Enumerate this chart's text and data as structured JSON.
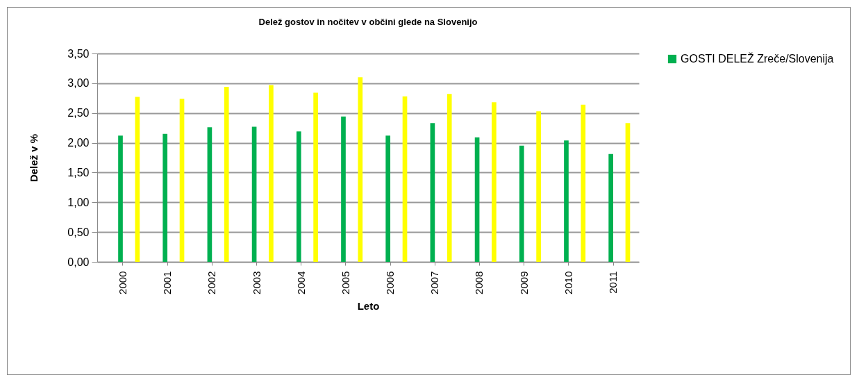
{
  "chart_data": {
    "type": "bar",
    "title": "Delež gostov in nočitev v občini  glede na Slovenijo",
    "xlabel": "Leto",
    "ylabel": "Delež v %",
    "categories": [
      "2000",
      "2001",
      "2002",
      "2003",
      "2004",
      "2005",
      "2006",
      "2007",
      "2008",
      "2009",
      "2010",
      "2011"
    ],
    "series": [
      {
        "name": "GOSTI DELEŽ Zreče/Slovenija",
        "color": "#00b050",
        "values": [
          2.12,
          2.15,
          2.26,
          2.27,
          2.19,
          2.44,
          2.12,
          2.33,
          2.09,
          1.95,
          2.04,
          1.81
        ]
      },
      {
        "color": "#ffff00",
        "values": [
          2.77,
          2.74,
          2.94,
          2.97,
          2.84,
          3.1,
          2.78,
          2.82,
          2.68,
          2.53,
          2.64,
          2.33
        ]
      }
    ],
    "ylim": [
      0,
      3.5
    ],
    "yticks": [
      {
        "value": 0,
        "label": "0,00"
      },
      {
        "value": 0.5,
        "label": "0,50"
      },
      {
        "value": 1,
        "label": "1,00"
      },
      {
        "value": 1.5,
        "label": "1,50"
      },
      {
        "value": 2,
        "label": "2,00"
      },
      {
        "value": 2.5,
        "label": "2,50"
      },
      {
        "value": 3,
        "label": "3,00"
      },
      {
        "value": 3.5,
        "label": "3,50"
      }
    ],
    "grid": "y",
    "legend": "right"
  }
}
